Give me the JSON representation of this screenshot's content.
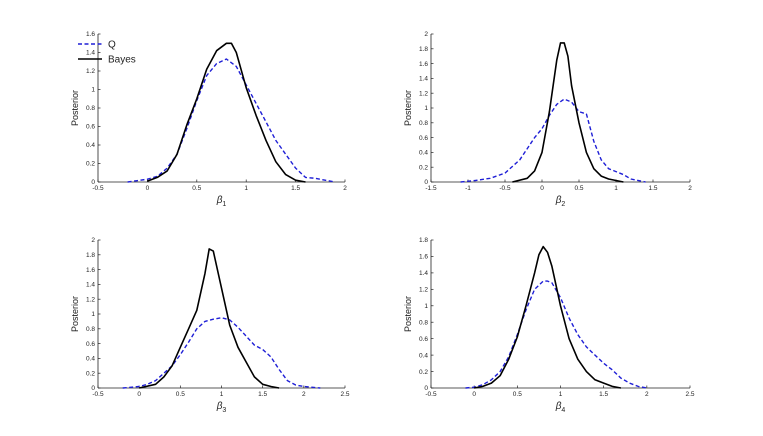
{
  "chart_data": [
    {
      "type": "line",
      "xlabel": "β",
      "xlabel_sub": "1",
      "ylabel": "Posterior",
      "xlim": [
        -0.5,
        2
      ],
      "ylim": [
        0,
        1.6
      ],
      "xticks": [
        "-0.5",
        "0",
        "0.5",
        "1",
        "1.5",
        "2"
      ],
      "yticks": [
        "0",
        "0.2",
        "0.4",
        "0.6",
        "0.8",
        "1",
        "1.2",
        "1.4",
        "1.6"
      ],
      "legend": {
        "position": "top-left",
        "entries": [
          "Q",
          "Bayes"
        ]
      },
      "series": [
        {
          "name": "Q",
          "style": "dashed",
          "color": "#1f1fd6",
          "x": [
            -0.2,
            0.0,
            0.1,
            0.2,
            0.3,
            0.4,
            0.5,
            0.6,
            0.7,
            0.8,
            0.9,
            1.0,
            1.1,
            1.2,
            1.3,
            1.4,
            1.5,
            1.6,
            1.7,
            1.8,
            1.9
          ],
          "y": [
            0.0,
            0.03,
            0.06,
            0.15,
            0.3,
            0.58,
            0.88,
            1.15,
            1.28,
            1.33,
            1.25,
            1.05,
            0.85,
            0.65,
            0.45,
            0.3,
            0.15,
            0.05,
            0.04,
            0.02,
            0.0
          ]
        },
        {
          "name": "Bayes",
          "style": "solid",
          "color": "#000000",
          "x": [
            0.0,
            0.1,
            0.2,
            0.3,
            0.4,
            0.5,
            0.6,
            0.7,
            0.8,
            0.85,
            0.9,
            1.0,
            1.1,
            1.2,
            1.3,
            1.4,
            1.5,
            1.6
          ],
          "y": [
            0.01,
            0.05,
            0.12,
            0.3,
            0.62,
            0.9,
            1.22,
            1.42,
            1.5,
            1.5,
            1.4,
            1.02,
            0.72,
            0.45,
            0.22,
            0.08,
            0.02,
            0.0
          ]
        }
      ]
    },
    {
      "type": "line",
      "xlabel": "β",
      "xlabel_sub": "2",
      "ylabel": "Posterior",
      "xlim": [
        -1.5,
        2
      ],
      "ylim": [
        0,
        2
      ],
      "xticks": [
        "-1.5",
        "-1",
        "-0.5",
        "0",
        "0.5",
        "1",
        "1.5",
        "2"
      ],
      "yticks": [
        "0",
        "0.2",
        "0.4",
        "0.6",
        "0.8",
        "1",
        "1.2",
        "1.4",
        "1.6",
        "1.8",
        "2"
      ],
      "series": [
        {
          "name": "Q",
          "style": "dashed",
          "color": "#1f1fd6",
          "x": [
            -1.1,
            -0.9,
            -0.7,
            -0.5,
            -0.3,
            -0.1,
            0.0,
            0.1,
            0.2,
            0.3,
            0.4,
            0.5,
            0.6,
            0.7,
            0.8,
            0.9,
            1.0,
            1.1,
            1.2,
            1.4
          ],
          "y": [
            0.0,
            0.02,
            0.05,
            0.12,
            0.3,
            0.6,
            0.72,
            0.9,
            1.05,
            1.12,
            1.08,
            0.95,
            0.92,
            0.55,
            0.3,
            0.18,
            0.14,
            0.1,
            0.04,
            0.0
          ]
        },
        {
          "name": "Bayes",
          "style": "solid",
          "color": "#000000",
          "x": [
            -0.4,
            -0.2,
            -0.1,
            0.0,
            0.1,
            0.15,
            0.2,
            0.25,
            0.3,
            0.35,
            0.4,
            0.5,
            0.6,
            0.7,
            0.8,
            0.9,
            1.0,
            1.1
          ],
          "y": [
            0.0,
            0.05,
            0.15,
            0.4,
            0.95,
            1.3,
            1.65,
            1.88,
            1.88,
            1.7,
            1.3,
            0.8,
            0.4,
            0.18,
            0.08,
            0.04,
            0.02,
            0.0
          ]
        }
      ]
    },
    {
      "type": "line",
      "xlabel": "β",
      "xlabel_sub": "3",
      "ylabel": "Posterior",
      "xlim": [
        -0.5,
        2.5
      ],
      "ylim": [
        0,
        2
      ],
      "xticks": [
        "-0.5",
        "0",
        "0.5",
        "1",
        "1.5",
        "2",
        "2.5"
      ],
      "yticks": [
        "0",
        "0.2",
        "0.4",
        "0.6",
        "0.8",
        "1",
        "1.2",
        "1.4",
        "1.6",
        "1.8",
        "2"
      ],
      "series": [
        {
          "name": "Q",
          "style": "dashed",
          "color": "#1f1fd6",
          "x": [
            -0.2,
            0.0,
            0.1,
            0.2,
            0.3,
            0.4,
            0.5,
            0.6,
            0.7,
            0.8,
            0.9,
            1.0,
            1.1,
            1.2,
            1.3,
            1.4,
            1.5,
            1.6,
            1.7,
            1.8,
            1.9,
            2.0,
            2.2
          ],
          "y": [
            0.0,
            0.02,
            0.05,
            0.1,
            0.2,
            0.3,
            0.45,
            0.62,
            0.8,
            0.9,
            0.93,
            0.95,
            0.92,
            0.82,
            0.7,
            0.58,
            0.52,
            0.42,
            0.25,
            0.1,
            0.04,
            0.02,
            0.0
          ]
        },
        {
          "name": "Bayes",
          "style": "solid",
          "color": "#000000",
          "x": [
            0.0,
            0.2,
            0.3,
            0.4,
            0.5,
            0.6,
            0.7,
            0.8,
            0.85,
            0.9,
            1.0,
            1.1,
            1.2,
            1.3,
            1.4,
            1.5,
            1.6,
            1.7
          ],
          "y": [
            0.0,
            0.05,
            0.15,
            0.3,
            0.55,
            0.8,
            1.05,
            1.55,
            1.88,
            1.85,
            1.35,
            0.85,
            0.55,
            0.35,
            0.15,
            0.05,
            0.02,
            0.0
          ]
        }
      ]
    },
    {
      "type": "line",
      "xlabel": "β",
      "xlabel_sub": "4",
      "ylabel": "Posterior",
      "xlim": [
        -0.5,
        2.5
      ],
      "ylim": [
        0,
        1.8
      ],
      "xticks": [
        "-0.5",
        "0",
        "0.5",
        "1",
        "1.5",
        "2",
        "2.5"
      ],
      "yticks": [
        "0",
        "0.2",
        "0.4",
        "0.6",
        "0.8",
        "1",
        "1.2",
        "1.4",
        "1.6",
        "1.8"
      ],
      "series": [
        {
          "name": "Q",
          "style": "dashed",
          "color": "#1f1fd6",
          "x": [
            -0.1,
            0.0,
            0.1,
            0.2,
            0.3,
            0.4,
            0.5,
            0.6,
            0.7,
            0.8,
            0.85,
            0.9,
            1.0,
            1.1,
            1.2,
            1.3,
            1.4,
            1.5,
            1.6,
            1.7,
            1.8,
            1.9,
            2.0
          ],
          "y": [
            0.0,
            0.01,
            0.04,
            0.1,
            0.2,
            0.38,
            0.65,
            0.95,
            1.2,
            1.3,
            1.3,
            1.28,
            1.1,
            0.85,
            0.65,
            0.5,
            0.4,
            0.3,
            0.22,
            0.12,
            0.06,
            0.02,
            0.0
          ]
        },
        {
          "name": "Bayes",
          "style": "solid",
          "color": "#000000",
          "x": [
            0.0,
            0.1,
            0.2,
            0.3,
            0.4,
            0.5,
            0.6,
            0.7,
            0.75,
            0.8,
            0.85,
            0.9,
            1.0,
            1.1,
            1.2,
            1.3,
            1.4,
            1.5,
            1.6,
            1.7
          ],
          "y": [
            0.0,
            0.02,
            0.06,
            0.15,
            0.35,
            0.62,
            1.0,
            1.4,
            1.62,
            1.72,
            1.65,
            1.48,
            1.0,
            0.6,
            0.35,
            0.2,
            0.1,
            0.06,
            0.02,
            0.0
          ]
        }
      ]
    }
  ]
}
